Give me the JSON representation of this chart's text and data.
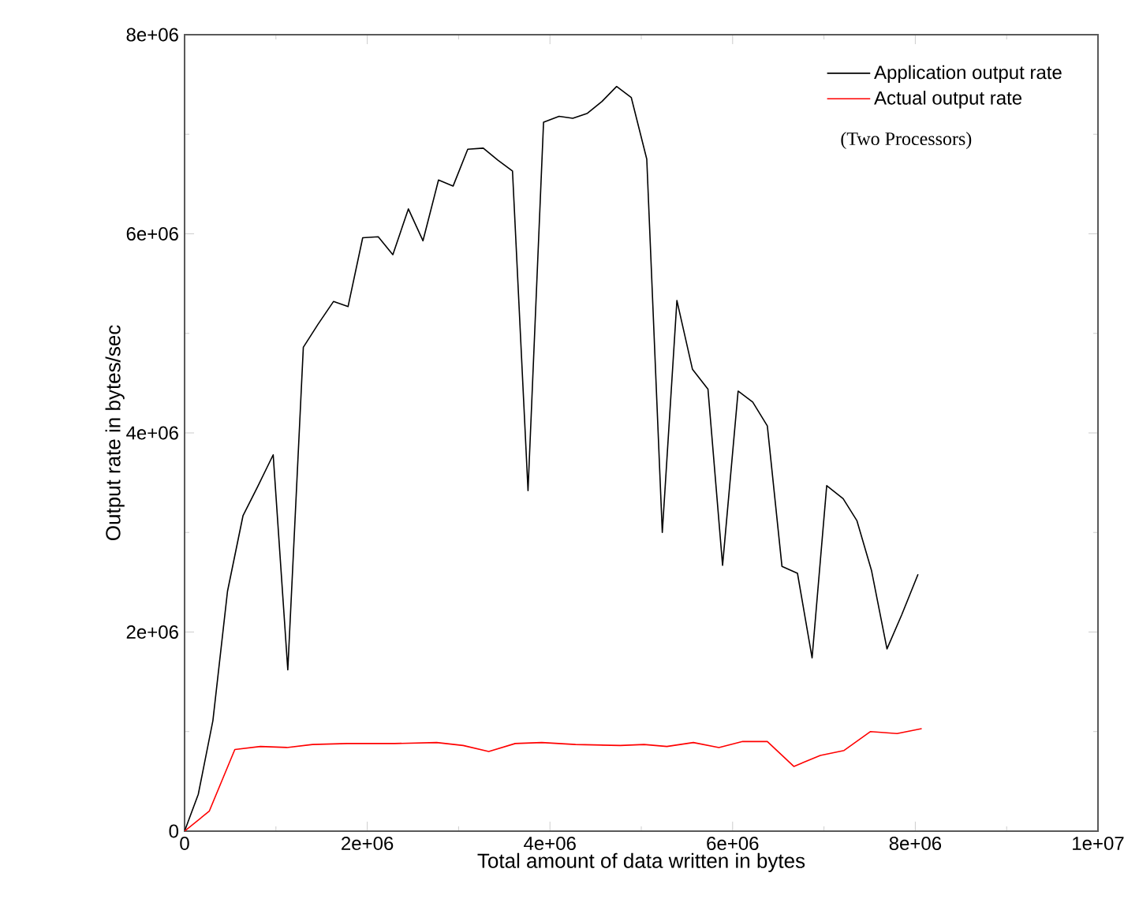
{
  "chart_data": {
    "type": "line",
    "xlabel": "Total amount of data written in bytes",
    "ylabel": "Output rate in bytes/sec",
    "annotations": [
      "(Two Processors)"
    ],
    "xlim": [
      0,
      10000000
    ],
    "ylim": [
      0,
      8000000
    ],
    "xticks": [
      0,
      {
        "value": 2000000,
        "label": "2e+06"
      },
      {
        "value": 4000000,
        "label": "4e+06"
      },
      {
        "value": 6000000,
        "label": "6e+06"
      },
      {
        "value": 8000000,
        "label": "8e+06"
      },
      {
        "value": 10000000,
        "label": "1e+07"
      }
    ],
    "yticks": [
      0,
      {
        "value": 2000000,
        "label": "2e+06"
      },
      {
        "value": 4000000,
        "label": "4e+06"
      },
      {
        "value": 6000000,
        "label": "6e+06"
      },
      {
        "value": 8000000,
        "label": "8e+06"
      }
    ],
    "legend": "top right",
    "grid": false,
    "marker": "none",
    "line_style": "solid",
    "series": [
      {
        "name": "Application output rate",
        "color": "#000000",
        "x": [
          0,
          150000,
          310000,
          470000,
          640000,
          800000,
          970000,
          1130000,
          1300000,
          1460000,
          1630000,
          1790000,
          1950000,
          2120000,
          2280000,
          2450000,
          2610000,
          2780000,
          2940000,
          3100000,
          3270000,
          3430000,
          3590000,
          3760000,
          3930000,
          4100000,
          4250000,
          4410000,
          4570000,
          4730000,
          4890000,
          5060000,
          5230000,
          5390000,
          5560000,
          5730000,
          5890000,
          6060000,
          6220000,
          6380000,
          6540000,
          6710000,
          6870000,
          7030000,
          7210000,
          7360000,
          7520000,
          7690000,
          7850000,
          8030000
        ],
        "values": [
          0,
          370000,
          1110000,
          2410000,
          3170000,
          3460000,
          3780000,
          1620000,
          4860000,
          5090000,
          5320000,
          5270000,
          5960000,
          5970000,
          5790000,
          6250000,
          5930000,
          6540000,
          6480000,
          6850000,
          6860000,
          6740000,
          6630000,
          3420000,
          7120000,
          7180000,
          7160000,
          7210000,
          7330000,
          7480000,
          7370000,
          6750000,
          3000000,
          5330000,
          4640000,
          4440000,
          2670000,
          4420000,
          4310000,
          4070000,
          2660000,
          2590000,
          1740000,
          3470000,
          3340000,
          3120000,
          2620000,
          1830000,
          2170000,
          2580000
        ]
      },
      {
        "name": "Actual output rate",
        "color": "#ff0000",
        "x": [
          0,
          270000,
          550000,
          830000,
          1120000,
          1400000,
          1780000,
          2300000,
          2760000,
          3050000,
          3330000,
          3620000,
          3910000,
          4280000,
          4770000,
          5030000,
          5280000,
          5570000,
          5850000,
          6110000,
          6380000,
          6670000,
          6960000,
          7220000,
          7510000,
          7800000,
          8070000
        ],
        "values": [
          0,
          200000,
          820000,
          850000,
          840000,
          870000,
          880000,
          880000,
          890000,
          860000,
          800000,
          880000,
          890000,
          870000,
          860000,
          870000,
          850000,
          890000,
          840000,
          900000,
          900000,
          650000,
          760000,
          810000,
          1000000,
          980000,
          1030000
        ]
      }
    ]
  }
}
